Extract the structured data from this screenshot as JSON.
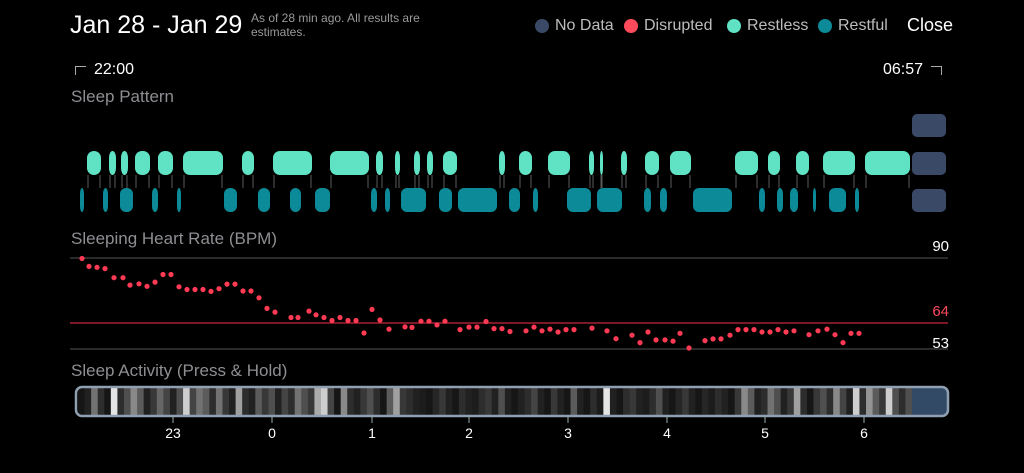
{
  "header": {
    "title": "Jan 28 - Jan 29",
    "note": "As of 28 min ago. All results are estimates.",
    "close_label": "Close"
  },
  "legend": [
    {
      "label": "No Data",
      "color": "#3a4a66"
    },
    {
      "label": "Disrupted",
      "color": "#ff4a5c"
    },
    {
      "label": "Restless",
      "color": "#5fe3c4"
    },
    {
      "label": "Restful",
      "color": "#0c8a97"
    }
  ],
  "time_range": {
    "start": "22:00",
    "end": "06:57"
  },
  "sleep_pattern": {
    "label": "Sleep Pattern",
    "restless_segments": [
      [
        87,
        101
      ],
      [
        109,
        116
      ],
      [
        121,
        128
      ],
      [
        135,
        150
      ],
      [
        158,
        173
      ],
      [
        183,
        223
      ],
      [
        242,
        254
      ],
      [
        273,
        312
      ],
      [
        330,
        369
      ],
      [
        376,
        383
      ],
      [
        395,
        400
      ],
      [
        414,
        420
      ],
      [
        427,
        433
      ],
      [
        443,
        457
      ],
      [
        499,
        505
      ],
      [
        519,
        532
      ],
      [
        548,
        570
      ],
      [
        589,
        594
      ],
      [
        600,
        603
      ],
      [
        621,
        627
      ],
      [
        645,
        659
      ],
      [
        670,
        691
      ],
      [
        735,
        758
      ],
      [
        768,
        780
      ],
      [
        796,
        809
      ],
      [
        823,
        855
      ],
      [
        865,
        910
      ]
    ],
    "restful_segments": [
      [
        80,
        84
      ],
      [
        103,
        108
      ],
      [
        120,
        133
      ],
      [
        152,
        158
      ],
      [
        177,
        181
      ],
      [
        224,
        237
      ],
      [
        258,
        270
      ],
      [
        290,
        301
      ],
      [
        315,
        330
      ],
      [
        371,
        377
      ],
      [
        385,
        390
      ],
      [
        401,
        426
      ],
      [
        439,
        452
      ],
      [
        458,
        497
      ],
      [
        509,
        520
      ],
      [
        533,
        538
      ],
      [
        567,
        591
      ],
      [
        597,
        622
      ],
      [
        644,
        651
      ],
      [
        660,
        667
      ],
      [
        693,
        732
      ],
      [
        759,
        765
      ],
      [
        777,
        783
      ],
      [
        790,
        798
      ],
      [
        813,
        816
      ],
      [
        829,
        846
      ],
      [
        855,
        859
      ]
    ],
    "no_data_marker": true
  },
  "heart_rate": {
    "label": "Sleeping Heart Rate (BPM)",
    "max_label": "90",
    "avg_label": "64",
    "min_label": "53",
    "max": 90,
    "avg": 64,
    "min": 53,
    "points": [
      [
        82,
        89.8
      ],
      [
        89,
        86.6
      ],
      [
        97,
        86.2
      ],
      [
        105,
        85.7
      ],
      [
        114,
        82
      ],
      [
        123,
        82
      ],
      [
        130,
        79
      ],
      [
        139,
        79.5
      ],
      [
        147,
        78.5
      ],
      [
        155,
        80.2
      ],
      [
        163,
        83.3
      ],
      [
        171,
        83.3
      ],
      [
        179,
        78.3
      ],
      [
        187,
        77.2
      ],
      [
        195,
        77.2
      ],
      [
        203,
        77.2
      ],
      [
        211,
        76.4
      ],
      [
        219,
        77.5
      ],
      [
        227,
        79.4
      ],
      [
        235,
        79.4
      ],
      [
        243,
        76.6
      ],
      [
        251,
        76.6
      ],
      [
        259,
        73.8
      ],
      [
        267,
        69.5
      ],
      [
        275,
        68
      ],
      [
        291,
        65.8
      ],
      [
        298,
        65.8
      ],
      [
        309,
        68.4
      ],
      [
        316,
        66.9
      ],
      [
        324,
        65.8
      ],
      [
        332,
        64.6
      ],
      [
        340,
        65.8
      ],
      [
        348,
        64.6
      ],
      [
        356,
        64.6
      ],
      [
        364,
        59.5
      ],
      [
        372,
        69.1
      ],
      [
        380,
        64.8
      ],
      [
        389,
        61.1
      ],
      [
        405,
        62
      ],
      [
        412,
        61.8
      ],
      [
        421,
        64.3
      ],
      [
        429,
        64.3
      ],
      [
        437,
        62.8
      ],
      [
        445,
        64.3
      ],
      [
        460,
        60.9
      ],
      [
        469,
        61.9
      ],
      [
        477,
        61.9
      ],
      [
        486,
        64.2
      ],
      [
        494,
        61.3
      ],
      [
        502,
        61.3
      ],
      [
        510,
        60.1
      ],
      [
        526,
        60.4
      ],
      [
        534,
        61.9
      ],
      [
        542,
        60.4
      ],
      [
        550,
        61.1
      ],
      [
        558,
        59.9
      ],
      [
        566,
        60.9
      ],
      [
        574,
        60.9
      ],
      [
        592,
        61.5
      ],
      [
        607,
        60.4
      ],
      [
        616,
        57.2
      ],
      [
        632,
        58.6
      ],
      [
        640,
        55.6
      ],
      [
        648,
        59.9
      ],
      [
        656,
        56.7
      ],
      [
        665,
        56.7
      ],
      [
        673,
        56.2
      ],
      [
        680,
        59.4
      ],
      [
        689,
        53.4
      ],
      [
        705,
        56.4
      ],
      [
        713,
        57.1
      ],
      [
        721,
        57.1
      ],
      [
        730,
        58.6
      ],
      [
        738,
        60.9
      ],
      [
        746,
        60.9
      ],
      [
        754,
        60.9
      ],
      [
        762,
        59.9
      ],
      [
        770,
        59.9
      ],
      [
        778,
        60.9
      ],
      [
        786,
        59.9
      ],
      [
        794,
        60.4
      ],
      [
        809,
        58.8
      ],
      [
        818,
        60.4
      ],
      [
        827,
        61.1
      ],
      [
        835,
        58.8
      ],
      [
        843,
        55.6
      ],
      [
        851,
        59.4
      ],
      [
        859,
        59.4
      ]
    ]
  },
  "sleep_activity": {
    "label": "Sleep Activity (Press & Hold)",
    "x_ticks": [
      "23",
      "0",
      "1",
      "2",
      "3",
      "4",
      "5",
      "6"
    ],
    "intensities": [
      0.05,
      0.1,
      0.45,
      0.15,
      0.05,
      0.95,
      0.15,
      0.3,
      0.55,
      0.35,
      0.1,
      0.2,
      0.4,
      0.25,
      0.1,
      0.3,
      0.85,
      0.25,
      0.45,
      0.35,
      0.15,
      0.45,
      0.2,
      0.1,
      0.65,
      0.15,
      0.1,
      0.35,
      0.2,
      0.3,
      0.1,
      0.25,
      0.15,
      0.45,
      0.3,
      0.2,
      0.7,
      0.85,
      0.25,
      0.05,
      0.55,
      0.15,
      0.1,
      0.2,
      0.3,
      0.15,
      0.05,
      0.35,
      0.65,
      0.2,
      0.15,
      0.1,
      0.08,
      0.05,
      0.12,
      0.2,
      0.1,
      0.05,
      0.15,
      0.1,
      0.08,
      0.15,
      0.2,
      0.1,
      0.3,
      0.1,
      0.05,
      0.1,
      0.15,
      0.25,
      0.1,
      0.05,
      0.2,
      0.1,
      0.05,
      0.35,
      0.1,
      0.05,
      0.15,
      0.08,
      0.95,
      0.1,
      0.05,
      0.15,
      0.2,
      0.1,
      0.08,
      0.15,
      0.3,
      0.1,
      0.05,
      0.12,
      0.2,
      0.1,
      0.05,
      0.12,
      0.08,
      0.15,
      0.1,
      0.05,
      0.2,
      0.55,
      0.35,
      0.1,
      0.15,
      0.45,
      0.3,
      0.1,
      0.2,
      0.65,
      0.15,
      0.05,
      0.2,
      0.3,
      0.15,
      0.55,
      0.25,
      0.1,
      0.85,
      0.15,
      0.6,
      0.35,
      0.2,
      0.85,
      0.3,
      0.15,
      0.3
    ]
  }
}
